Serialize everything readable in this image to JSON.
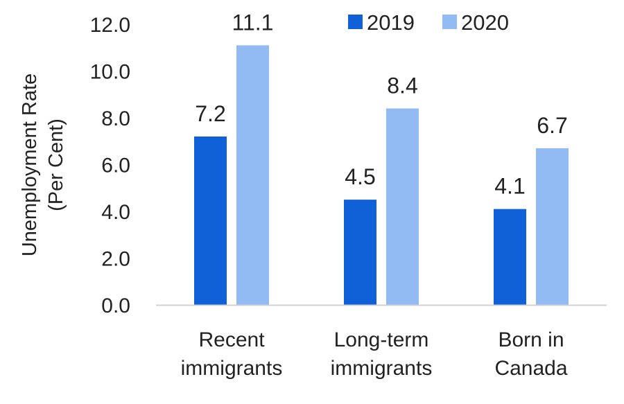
{
  "chart_data": {
    "type": "bar",
    "title": "",
    "xlabel": "",
    "ylabel": [
      "Unemployment Rate",
      "(Per Cent)"
    ],
    "ylim": [
      0,
      12
    ],
    "yticks": [
      "0.0",
      "2.0",
      "4.0",
      "6.0",
      "8.0",
      "10.0",
      "12.0"
    ],
    "categories": [
      [
        "Recent",
        "immigrants"
      ],
      [
        "Long-term",
        "immigrants"
      ],
      [
        "Born in",
        "Canada"
      ]
    ],
    "series": [
      {
        "name": "2019",
        "values": [
          7.2,
          4.5,
          4.1
        ],
        "labels": [
          "7.2",
          "4.5",
          "4.1"
        ],
        "color": "#1060d8"
      },
      {
        "name": "2020",
        "values": [
          11.1,
          8.4,
          6.7
        ],
        "labels": [
          "11.1",
          "8.4",
          "6.7"
        ],
        "color": "#93bbf3"
      }
    ],
    "legend_position": "top-right",
    "grid": false,
    "axis_color": "#d0d0d0"
  }
}
